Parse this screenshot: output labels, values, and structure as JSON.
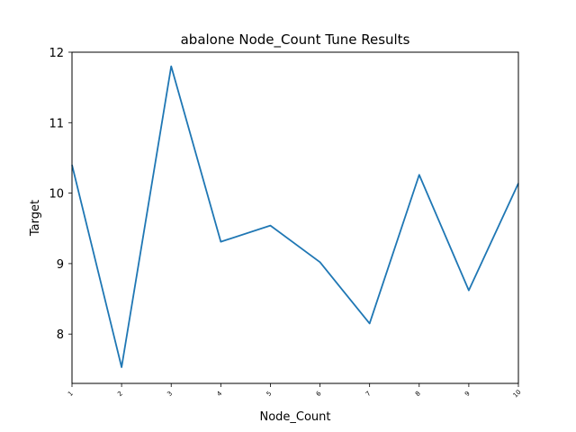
{
  "chart_data": {
    "type": "line",
    "title": "abalone Node_Count Tune Results",
    "xlabel": "Node_Count",
    "ylabel": "Target",
    "x": [
      1,
      2,
      3,
      4,
      5,
      6,
      7,
      8,
      9,
      10
    ],
    "series": [
      {
        "values": [
          10.4,
          7.53,
          11.8,
          9.31,
          9.54,
          9.02,
          8.15,
          10.26,
          8.62,
          10.14
        ]
      }
    ],
    "xlim": [
      1,
      10
    ],
    "ylim": [
      7.3,
      12.0
    ],
    "xticks": [
      "1",
      "2",
      "3",
      "4",
      "5",
      "6",
      "7",
      "8",
      "9",
      "10"
    ],
    "yticks": [
      8,
      9,
      10,
      11,
      12
    ],
    "grid": false,
    "line_color": "#1f77b4"
  }
}
